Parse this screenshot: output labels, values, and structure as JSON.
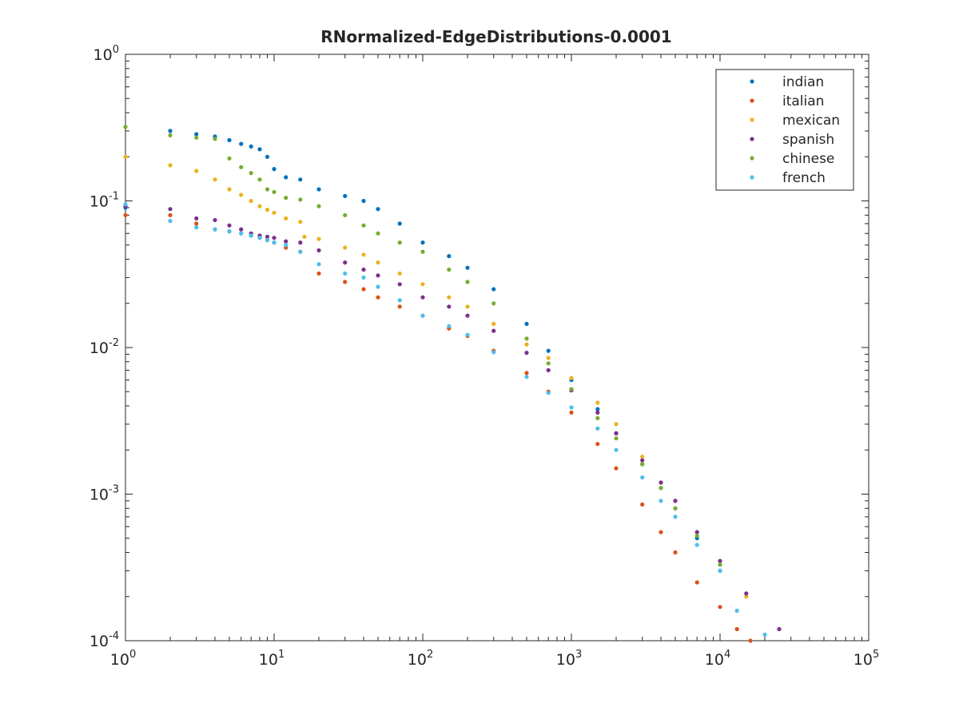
{
  "chart_data": {
    "type": "scatter",
    "title": "RNormalized-EdgeDistributions-0.0001",
    "xlabel": "",
    "ylabel": "",
    "xscale": "log",
    "yscale": "log",
    "xlim": [
      1,
      100000
    ],
    "ylim": [
      0.0001,
      1
    ],
    "x_ticks": [
      {
        "base": "10",
        "exp": "0",
        "value": 1
      },
      {
        "base": "10",
        "exp": "1",
        "value": 10
      },
      {
        "base": "10",
        "exp": "2",
        "value": 100
      },
      {
        "base": "10",
        "exp": "3",
        "value": 1000
      },
      {
        "base": "10",
        "exp": "4",
        "value": 10000
      },
      {
        "base": "10",
        "exp": "5",
        "value": 100000
      }
    ],
    "y_ticks": [
      {
        "base": "10",
        "exp": "-4",
        "value": 0.0001
      },
      {
        "base": "10",
        "exp": "-3",
        "value": 0.001
      },
      {
        "base": "10",
        "exp": "-2",
        "value": 0.01
      },
      {
        "base": "10",
        "exp": "-1",
        "value": 0.1
      },
      {
        "base": "10",
        "exp": "0",
        "value": 1
      }
    ],
    "grid": false,
    "legend_position": "top-right",
    "series": [
      {
        "name": "indian",
        "color": "#0072BD",
        "x": [
          1,
          2,
          3,
          4,
          5,
          6,
          7,
          8,
          9,
          10,
          12,
          15,
          20,
          30,
          40,
          50,
          70,
          100,
          150,
          200,
          300,
          500,
          700,
          1000,
          1500,
          2000,
          3000,
          4000,
          5000,
          7000,
          10000
        ],
        "y": [
          0.09,
          0.3,
          0.285,
          0.275,
          0.26,
          0.245,
          0.235,
          0.225,
          0.2,
          0.165,
          0.145,
          0.14,
          0.12,
          0.108,
          0.1,
          0.088,
          0.07,
          0.052,
          0.042,
          0.035,
          0.025,
          0.0145,
          0.0095,
          0.006,
          0.0038,
          0.0026,
          0.0016,
          0.0011,
          0.0008,
          0.0005,
          0.0003
        ]
      },
      {
        "name": "italian",
        "color": "#D95319",
        "x": [
          1,
          2,
          3,
          4,
          5,
          6,
          7,
          8,
          9,
          10,
          12,
          15,
          20,
          30,
          40,
          50,
          70,
          100,
          150,
          200,
          300,
          500,
          700,
          1000,
          1500,
          2000,
          3000,
          4000,
          5000,
          7000,
          10000,
          13000,
          16000
        ],
        "y": [
          0.08,
          0.08,
          0.07,
          0.064,
          0.062,
          0.06,
          0.058,
          0.056,
          0.054,
          0.052,
          0.048,
          0.045,
          0.032,
          0.028,
          0.025,
          0.022,
          0.019,
          0.0165,
          0.0135,
          0.012,
          0.0095,
          0.0067,
          0.005,
          0.0036,
          0.0022,
          0.0015,
          0.00085,
          0.00055,
          0.0004,
          0.00025,
          0.00017,
          0.00012,
          0.0001
        ]
      },
      {
        "name": "mexican",
        "color": "#EDB120",
        "x": [
          1,
          2,
          3,
          4,
          5,
          6,
          7,
          8,
          9,
          10,
          12,
          15,
          16,
          20,
          30,
          40,
          50,
          70,
          100,
          150,
          200,
          300,
          500,
          700,
          1000,
          1500,
          2000,
          3000,
          4000,
          5000,
          7000,
          10000,
          15000
        ],
        "y": [
          0.2,
          0.175,
          0.16,
          0.14,
          0.12,
          0.11,
          0.1,
          0.092,
          0.087,
          0.083,
          0.076,
          0.072,
          0.057,
          0.055,
          0.048,
          0.043,
          0.038,
          0.032,
          0.027,
          0.022,
          0.019,
          0.0145,
          0.0105,
          0.0085,
          0.0062,
          0.0042,
          0.003,
          0.0018,
          0.0012,
          0.0009,
          0.00055,
          0.00035,
          0.0002
        ]
      },
      {
        "name": "spanish",
        "color": "#7E2F8E",
        "x": [
          1,
          2,
          3,
          4,
          5,
          6,
          7,
          8,
          9,
          10,
          12,
          15,
          20,
          30,
          40,
          50,
          70,
          100,
          150,
          200,
          300,
          500,
          700,
          1000,
          1500,
          2000,
          3000,
          4000,
          5000,
          7000,
          10000,
          15000,
          25000
        ],
        "y": [
          0.092,
          0.088,
          0.076,
          0.074,
          0.068,
          0.064,
          0.06,
          0.058,
          0.057,
          0.056,
          0.053,
          0.052,
          0.046,
          0.038,
          0.034,
          0.031,
          0.027,
          0.022,
          0.019,
          0.0165,
          0.013,
          0.0092,
          0.007,
          0.0051,
          0.0036,
          0.0026,
          0.0017,
          0.0012,
          0.0009,
          0.00055,
          0.00035,
          0.00021,
          0.00012
        ]
      },
      {
        "name": "chinese",
        "color": "#77AC30",
        "x": [
          1,
          2,
          3,
          4,
          5,
          6,
          7,
          8,
          9,
          10,
          12,
          15,
          20,
          30,
          40,
          50,
          70,
          100,
          150,
          200,
          300,
          500,
          700,
          1000,
          1500,
          2000,
          3000,
          4000,
          5000,
          7000,
          10000
        ],
        "y": [
          0.32,
          0.28,
          0.27,
          0.265,
          0.195,
          0.17,
          0.155,
          0.14,
          0.12,
          0.115,
          0.105,
          0.102,
          0.092,
          0.08,
          0.068,
          0.06,
          0.052,
          0.045,
          0.034,
          0.028,
          0.02,
          0.0115,
          0.0078,
          0.0052,
          0.0033,
          0.0024,
          0.0016,
          0.0011,
          0.0008,
          0.00052,
          0.00033
        ]
      },
      {
        "name": "french",
        "color": "#4DBEEE",
        "x": [
          1,
          2,
          3,
          4,
          5,
          6,
          7,
          8,
          9,
          10,
          12,
          15,
          20,
          30,
          40,
          50,
          70,
          100,
          150,
          200,
          300,
          500,
          700,
          1000,
          1500,
          2000,
          3000,
          4000,
          5000,
          7000,
          10000,
          13000,
          20000
        ],
        "y": [
          0.095,
          0.073,
          0.066,
          0.064,
          0.062,
          0.06,
          0.058,
          0.056,
          0.054,
          0.052,
          0.05,
          0.045,
          0.037,
          0.032,
          0.03,
          0.026,
          0.021,
          0.0165,
          0.014,
          0.0122,
          0.0093,
          0.0063,
          0.0049,
          0.0039,
          0.0028,
          0.002,
          0.0013,
          0.0009,
          0.0007,
          0.00045,
          0.0003,
          0.00016,
          0.00011
        ]
      }
    ]
  }
}
